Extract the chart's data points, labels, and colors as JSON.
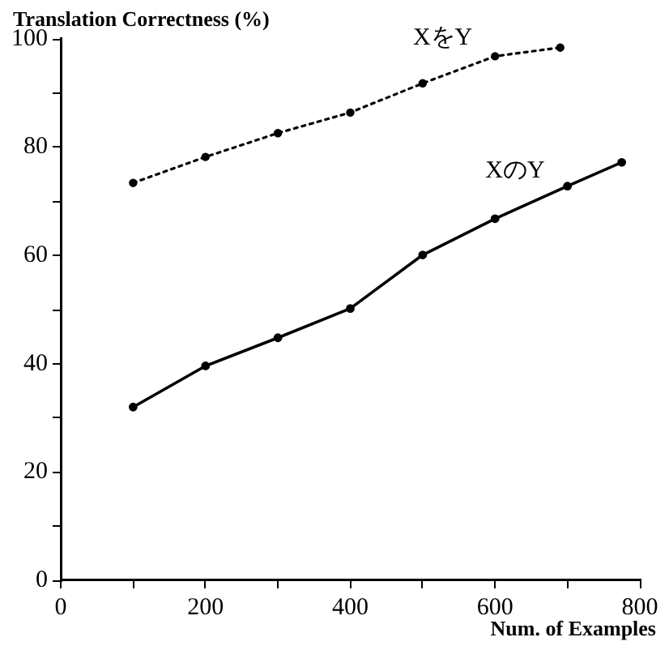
{
  "chart_data": {
    "type": "line",
    "ylabel": "Translation Correctness (%)",
    "xlabel": "Num. of Examples",
    "xlim": [
      0,
      800
    ],
    "ylim": [
      0,
      100
    ],
    "xticks": [
      0,
      {
        "value": 100,
        "label": null
      },
      200,
      {
        "value": 300,
        "label": null
      },
      400,
      {
        "value": 500,
        "label": null
      },
      600,
      {
        "value": 700,
        "label": null
      },
      800
    ],
    "yticks": [
      0,
      {
        "value": 10,
        "label": null
      },
      20,
      {
        "value": 30,
        "label": null
      },
      40,
      {
        "value": 50,
        "label": null
      },
      60,
      {
        "value": 70,
        "label": null
      },
      80,
      {
        "value": 90,
        "label": null
      },
      100
    ],
    "grid": false,
    "legend": false,
    "marker": "circle",
    "series": [
      {
        "name": "XをY",
        "color": "#000000",
        "line_style": "dotted",
        "x": [
          100,
          200,
          300,
          400,
          500,
          600,
          690
        ],
        "values": [
          73.4,
          78.2,
          82.6,
          86.4,
          91.8,
          96.8,
          98.4
        ]
      },
      {
        "name": "XのY",
        "color": "#000000",
        "line_style": "solid",
        "x": [
          100,
          200,
          300,
          400,
          500,
          600,
          700,
          775
        ],
        "values": [
          32,
          39.6,
          44.8,
          50.2,
          60.1,
          66.8,
          72.8,
          77.2
        ]
      }
    ]
  }
}
